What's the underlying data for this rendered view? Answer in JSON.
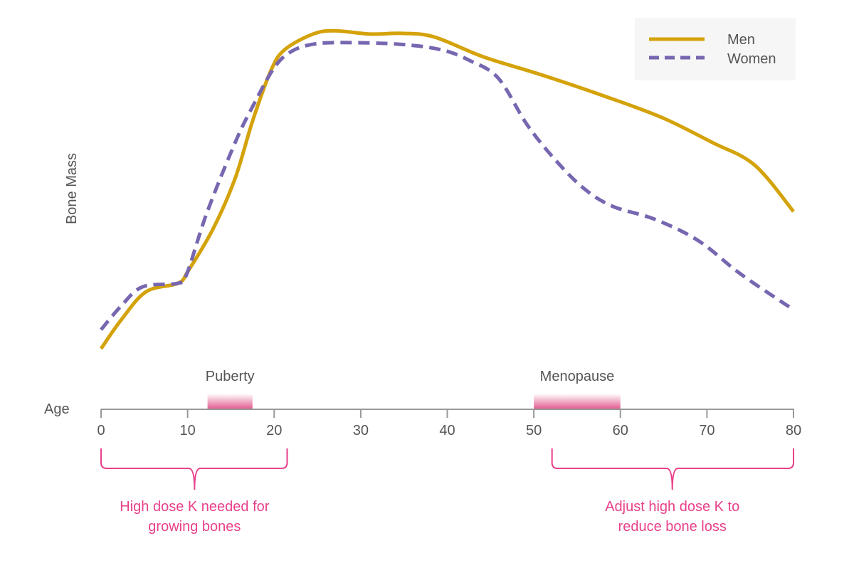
{
  "chart_data": {
    "type": "line",
    "title": "",
    "xlabel": "Age",
    "ylabel": "Bone Mass",
    "xlim": [
      0,
      80
    ],
    "ylim": [
      0,
      100
    ],
    "x_ticks": [
      0,
      10,
      20,
      30,
      40,
      50,
      60,
      70,
      80
    ],
    "y_ticks_shown": false,
    "grid": false,
    "legend_position": "top-right",
    "series": [
      {
        "name": "Men",
        "color": "#D4A20A",
        "style": "solid",
        "points": [
          [
            0,
            2.2
          ],
          [
            2.3,
            10.9
          ],
          [
            5.2,
            19.6
          ],
          [
            8.9,
            22.2
          ],
          [
            10.1,
            26.1
          ],
          [
            13,
            39.1
          ],
          [
            15.5,
            54.3
          ],
          [
            17.5,
            71.7
          ],
          [
            19.6,
            87
          ],
          [
            21.2,
            93.5
          ],
          [
            24.5,
            98.3
          ],
          [
            27,
            99.3
          ],
          [
            31.1,
            98.3
          ],
          [
            34.8,
            98.5
          ],
          [
            38.5,
            97.4
          ],
          [
            44.2,
            91.3
          ],
          [
            50.8,
            85.9
          ],
          [
            58.2,
            79.3
          ],
          [
            64.8,
            72.8
          ],
          [
            70.6,
            65.2
          ],
          [
            75.5,
            58.3
          ],
          [
            80,
            44.1
          ]
        ]
      },
      {
        "name": "Women",
        "color": "#7766B0",
        "style": "dashed",
        "points": [
          [
            0,
            8
          ],
          [
            2.3,
            15.2
          ],
          [
            4.8,
            21.1
          ],
          [
            8.9,
            22.2
          ],
          [
            9.9,
            25
          ],
          [
            12.2,
            43.5
          ],
          [
            15.5,
            65.2
          ],
          [
            17.5,
            76.1
          ],
          [
            20,
            88
          ],
          [
            22,
            93
          ],
          [
            24.5,
            95.2
          ],
          [
            27.8,
            95.7
          ],
          [
            34.4,
            95.2
          ],
          [
            39.3,
            93.5
          ],
          [
            42.6,
            90.2
          ],
          [
            45.9,
            84.8
          ],
          [
            49.2,
            70.7
          ],
          [
            52.5,
            59.8
          ],
          [
            55.8,
            51.1
          ],
          [
            59.1,
            45.7
          ],
          [
            64,
            41.7
          ],
          [
            69,
            35.2
          ],
          [
            73.9,
            25
          ],
          [
            80,
            14.1
          ]
        ]
      }
    ],
    "periods": [
      {
        "label": "Puberty",
        "start": 12.3,
        "end": 17.5
      },
      {
        "label": "Menopause",
        "start": 50,
        "end": 60
      }
    ],
    "annotations": [
      {
        "start": 0,
        "end": 21.5,
        "tip": 10.8,
        "lines": [
          "High dose K needed for",
          "growing bones"
        ]
      },
      {
        "start": 52.1,
        "end": 80,
        "tip": 66,
        "lines": [
          "Adjust high dose K to",
          "reduce bone loss"
        ]
      }
    ],
    "colors": {
      "period": "#E0508A",
      "annotation": "#E8408A",
      "axis": "#999999",
      "text": "#555555",
      "legend_bg": "#F6F6F6"
    }
  }
}
